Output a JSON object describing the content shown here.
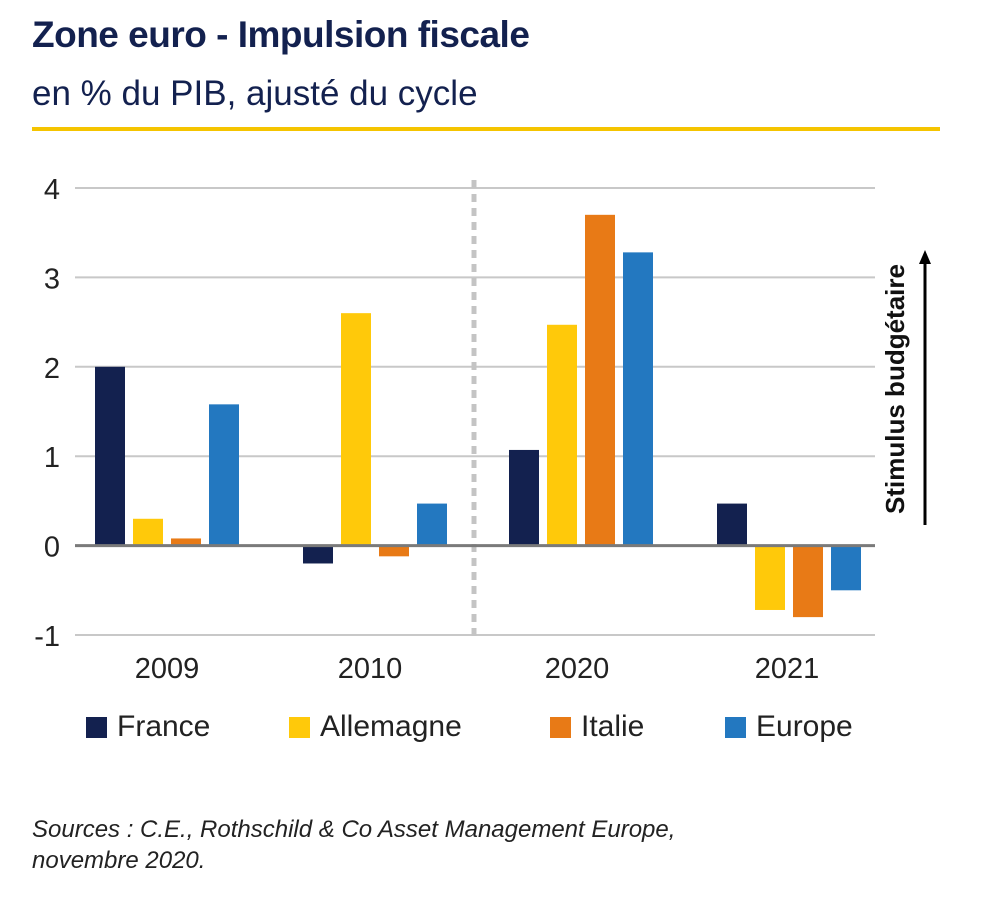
{
  "title": "Zone euro - Impulsion fiscale",
  "subtitle": "en % du PIB, ajusté du cycle",
  "source_line1": "Sources : C.E., Rothschild & Co Asset Management Europe,",
  "source_line2": "novembre 2020.",
  "colors": {
    "title": "#13214f",
    "rule": "#f5c400",
    "France": "#13214f",
    "Allemagne": "#ffc90a",
    "Italie": "#e87a16",
    "Europe": "#2378c0"
  },
  "chart_data": {
    "type": "bar",
    "categories": [
      "2009",
      "2010",
      "2020",
      "2021"
    ],
    "series": [
      {
        "name": "France",
        "values": [
          2.0,
          -0.2,
          1.07,
          0.47
        ]
      },
      {
        "name": "Allemagne",
        "values": [
          0.3,
          2.6,
          2.47,
          -0.72
        ]
      },
      {
        "name": "Italie",
        "values": [
          0.08,
          -0.12,
          3.7,
          -0.8
        ]
      },
      {
        "name": "Europe",
        "values": [
          1.58,
          0.47,
          3.28,
          -0.5
        ]
      }
    ],
    "yticks": [
      "4",
      "3",
      "2",
      "1",
      "0",
      "-1"
    ],
    "ylim": [
      -1,
      4
    ],
    "annotation": "Stimulus budgétaire",
    "grid": true,
    "legend": "bottom"
  }
}
